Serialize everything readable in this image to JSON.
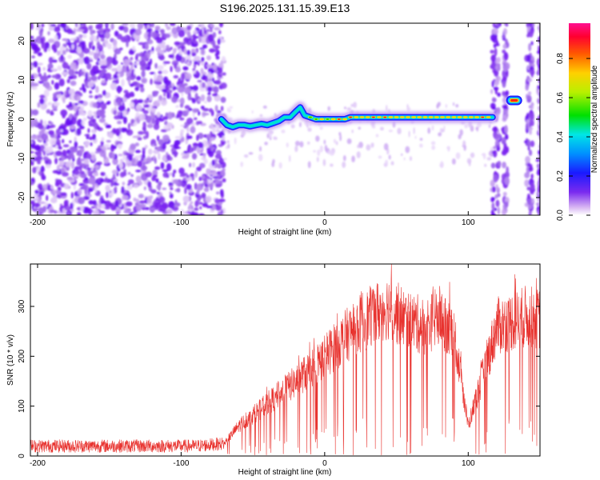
{
  "title": "S196.2025.131.15.39.E13",
  "chart_data": [
    {
      "type": "heatmap",
      "xlabel": "Height of straight line (km)",
      "ylabel": "Frequency (Hz)",
      "xlim": [
        -205,
        150
      ],
      "ylim": [
        -24.5,
        24.5
      ],
      "xticks": [
        -200,
        -100,
        0,
        100
      ],
      "yticks": [
        -20,
        -10,
        0,
        10,
        20
      ],
      "colorbar": {
        "label": "Normalized spectral amplitude",
        "range": [
          0,
          0.98
        ],
        "ticks": [
          "0.0",
          "0.2",
          "0.4",
          "0.6",
          "0.8"
        ],
        "tick_values": [
          0.0,
          0.2,
          0.4,
          0.6,
          0.8
        ],
        "colormap": "rainbow"
      },
      "ridge": {
        "description_series": "frequency peak track",
        "x": [
          -72,
          -68,
          -64,
          -60,
          -56,
          -52,
          -48,
          -44,
          -40,
          -36,
          -32,
          -28,
          -24,
          -20,
          -17,
          -14,
          -10,
          -6,
          -2,
          2,
          6,
          10,
          14,
          18,
          22,
          26,
          30,
          34,
          38,
          42,
          46,
          50,
          54,
          58,
          62,
          66,
          70,
          74,
          78,
          82,
          86,
          90,
          94,
          98,
          102,
          106,
          110,
          114,
          117
        ],
        "y": [
          0,
          -1.5,
          -2,
          -1.5,
          -1.5,
          -1.8,
          -1.5,
          -1.2,
          -1.5,
          -1,
          -0.5,
          0.5,
          0.5,
          2,
          3,
          1,
          0.5,
          0,
          0,
          0,
          0,
          0,
          0,
          0.5,
          0.5,
          0.5,
          0.5,
          0.5,
          0.5,
          0.5,
          0.5,
          0.5,
          0.5,
          0.5,
          0.5,
          0.5,
          0.5,
          0.5,
          0.5,
          0.5,
          0.5,
          0.5,
          0.5,
          0.5,
          0.5,
          0.5,
          0.5,
          0.5,
          0.5
        ],
        "amplitude": [
          0.35,
          0.35,
          0.4,
          0.4,
          0.4,
          0.38,
          0.4,
          0.4,
          0.38,
          0.35,
          0.4,
          0.45,
          0.5,
          0.5,
          0.45,
          0.5,
          0.55,
          0.6,
          0.75,
          0.6,
          0.8,
          0.85,
          0.8,
          0.85,
          0.75,
          0.8,
          0.8,
          0.85,
          0.8,
          0.85,
          0.8,
          0.8,
          0.75,
          0.8,
          0.8,
          0.78,
          0.8,
          0.75,
          0.8,
          0.8,
          0.75,
          0.8,
          0.8,
          0.8,
          0.75,
          0.8,
          0.85,
          0.75,
          0.4
        ]
      },
      "isolated_peak": {
        "x": 132,
        "y": 4.8,
        "amplitude": 0.95
      },
      "noise_region_x": [
        -205,
        -70
      ]
    },
    {
      "type": "line",
      "xlabel": "Height of straight line (km)",
      "ylabel": "SNR (10 * v/v)",
      "xlim": [
        -205,
        150
      ],
      "ylim": [
        0,
        385
      ],
      "xticks": [
        -200,
        -100,
        0,
        100
      ],
      "yticks": [
        0,
        100,
        200,
        300
      ],
      "color": "#e8322e",
      "envelope": {
        "x": [
          -205,
          -180,
          -150,
          -120,
          -90,
          -70,
          -60,
          -40,
          -20,
          0,
          20,
          40,
          45,
          55,
          70,
          80,
          90,
          100,
          110,
          120,
          140,
          150
        ],
        "y": [
          20,
          20,
          20,
          20,
          20,
          25,
          60,
          105,
          150,
          200,
          255,
          295,
          300,
          275,
          260,
          280,
          250,
          60,
          160,
          260,
          280,
          275
        ]
      }
    }
  ]
}
